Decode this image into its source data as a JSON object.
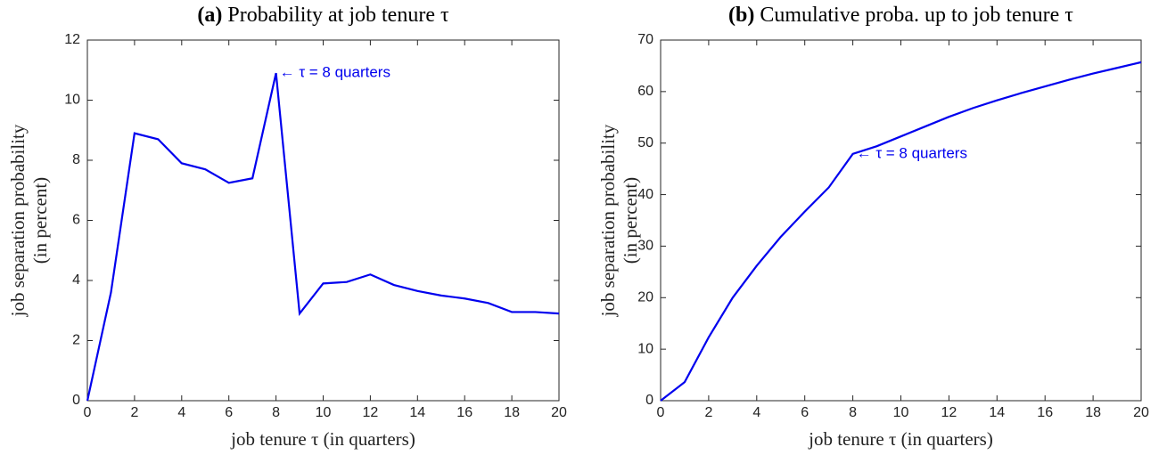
{
  "chart_data": [
    {
      "type": "line",
      "title_label": "(a)",
      "title": "Probability at job tenure τ",
      "xlabel": "job tenure τ (in quarters)",
      "ylabel": [
        "job separation probability",
        "(in percent)"
      ],
      "x": [
        0,
        1,
        2,
        3,
        4,
        5,
        6,
        7,
        8,
        9,
        10,
        11,
        12,
        13,
        14,
        15,
        16,
        17,
        18,
        19,
        20
      ],
      "values": [
        0,
        3.6,
        8.9,
        8.7,
        7.9,
        7.7,
        7.25,
        7.4,
        10.9,
        2.9,
        3.9,
        3.95,
        4.2,
        3.85,
        3.65,
        3.5,
        3.4,
        3.25,
        2.95,
        2.95,
        2.9
      ],
      "color": "#0000ee",
      "xlim": [
        0,
        20
      ],
      "xticks": [
        0,
        2,
        4,
        6,
        8,
        10,
        12,
        14,
        16,
        18,
        20
      ],
      "ylim": [
        0,
        12
      ],
      "yticks": [
        0,
        2,
        4,
        6,
        8,
        10,
        12
      ],
      "annotation": {
        "text": "← τ = 8 quarters",
        "x": 8,
        "y": 10.9
      }
    },
    {
      "type": "line",
      "title_label": "(b)",
      "title": "Cumulative proba. up to job tenure τ",
      "xlabel": "job tenure τ (in quarters)",
      "ylabel": [
        "job separation probability",
        "(in percent)"
      ],
      "x": [
        0,
        1,
        2,
        3,
        4,
        5,
        6,
        7,
        8,
        9,
        10,
        11,
        12,
        13,
        14,
        15,
        16,
        17,
        18,
        19,
        20
      ],
      "values": [
        0,
        3.6,
        12.3,
        20,
        26.2,
        31.8,
        36.7,
        41.4,
        47.9,
        49.4,
        51.3,
        53.2,
        55.1,
        56.8,
        58.3,
        59.7,
        61,
        62.3,
        63.5,
        64.6,
        65.7
      ],
      "color": "#0000ee",
      "xlim": [
        0,
        20
      ],
      "xticks": [
        0,
        2,
        4,
        6,
        8,
        10,
        12,
        14,
        16,
        18,
        20
      ],
      "ylim": [
        0,
        70
      ],
      "yticks": [
        0,
        10,
        20,
        30,
        40,
        50,
        60,
        70
      ],
      "annotation": {
        "text": "← τ = 8 quarters",
        "x": 8,
        "y": 47.9
      }
    }
  ]
}
